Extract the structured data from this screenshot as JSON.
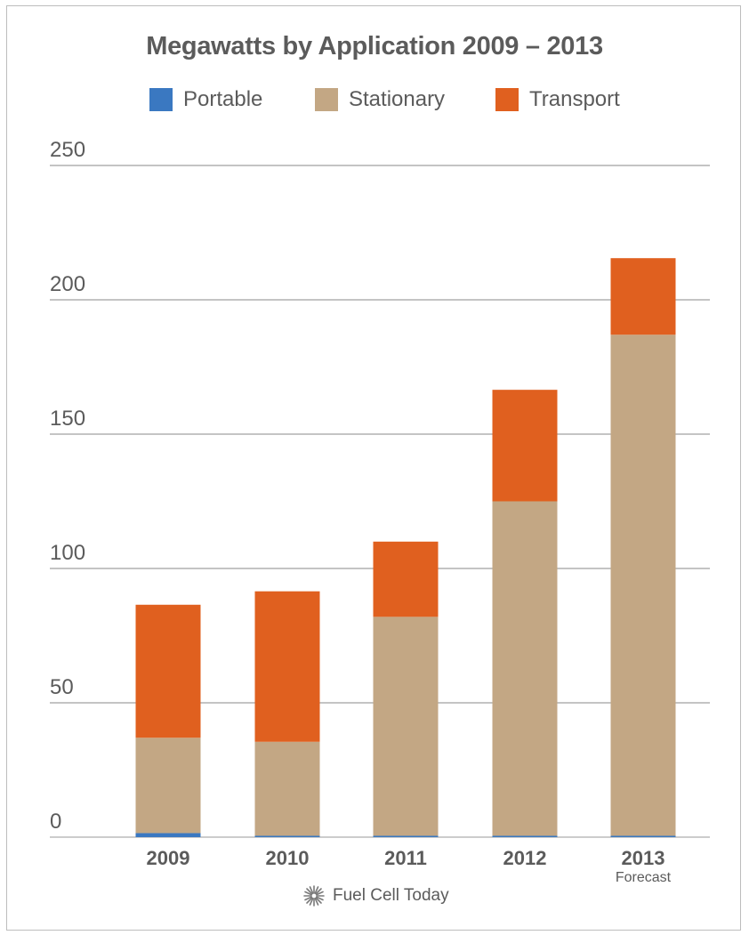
{
  "chart_data": {
    "type": "bar",
    "stacked": true,
    "title": "Megawatts by Application 2009 – 2013",
    "categories": [
      "2009",
      "2010",
      "2011",
      "2012",
      "2013"
    ],
    "category_sublabels": [
      "",
      "",
      "",
      "",
      "Forecast"
    ],
    "series": [
      {
        "name": "Portable",
        "color": "#3a78c1",
        "values": [
          1.5,
          0.5,
          0.5,
          0.5,
          0.5
        ]
      },
      {
        "name": "Stationary",
        "color": "#c3a784",
        "values": [
          35.5,
          35,
          81.5,
          124.5,
          186.5
        ]
      },
      {
        "name": "Transport",
        "color": "#e0601f",
        "values": [
          49.5,
          56,
          28,
          41.5,
          28.5
        ]
      }
    ],
    "yticks": [
      "0",
      "50",
      "100",
      "150",
      "200",
      "250"
    ],
    "ylim": [
      0,
      250
    ],
    "grid": true,
    "legend_position": "top"
  },
  "footer": {
    "brand_label": "Fuel Cell Today",
    "brand_icon": "starburst-icon"
  }
}
